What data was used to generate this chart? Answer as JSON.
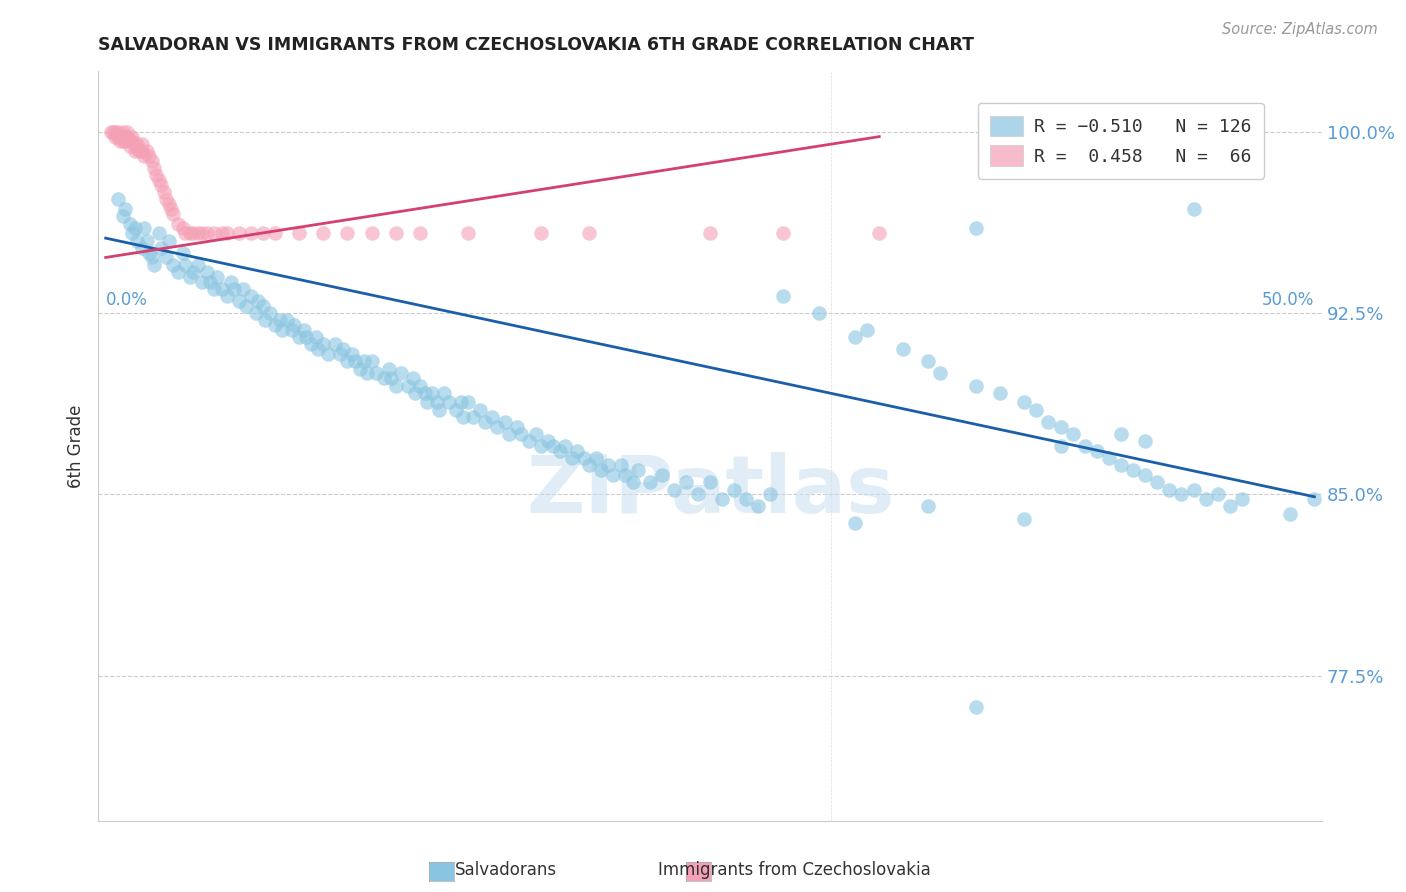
{
  "title": "SALVADORAN VS IMMIGRANTS FROM CZECHOSLOVAKIA 6TH GRADE CORRELATION CHART",
  "source": "Source: ZipAtlas.com",
  "ylabel": "6th Grade",
  "ytick_labels": [
    "100.0%",
    "92.5%",
    "85.0%",
    "77.5%"
  ],
  "ytick_values": [
    1.0,
    0.925,
    0.85,
    0.775
  ],
  "ymin": 0.715,
  "ymax": 1.025,
  "xmin": -0.003,
  "xmax": 0.503,
  "blue_color": "#89c4e1",
  "pink_color": "#f4a0b5",
  "line_blue": "#1a5fa8",
  "line_pink": "#d44070",
  "axis_color": "#5b9bd5",
  "blue_scatter": [
    [
      0.005,
      0.972
    ],
    [
      0.007,
      0.965
    ],
    [
      0.008,
      0.968
    ],
    [
      0.01,
      0.962
    ],
    [
      0.011,
      0.958
    ],
    [
      0.012,
      0.96
    ],
    [
      0.013,
      0.955
    ],
    [
      0.015,
      0.952
    ],
    [
      0.016,
      0.96
    ],
    [
      0.017,
      0.955
    ],
    [
      0.018,
      0.95
    ],
    [
      0.019,
      0.948
    ],
    [
      0.02,
      0.945
    ],
    [
      0.022,
      0.958
    ],
    [
      0.023,
      0.952
    ],
    [
      0.025,
      0.948
    ],
    [
      0.026,
      0.955
    ],
    [
      0.028,
      0.945
    ],
    [
      0.03,
      0.942
    ],
    [
      0.032,
      0.95
    ],
    [
      0.033,
      0.945
    ],
    [
      0.035,
      0.94
    ],
    [
      0.036,
      0.942
    ],
    [
      0.038,
      0.945
    ],
    [
      0.04,
      0.938
    ],
    [
      0.042,
      0.942
    ],
    [
      0.043,
      0.938
    ],
    [
      0.045,
      0.935
    ],
    [
      0.046,
      0.94
    ],
    [
      0.048,
      0.935
    ],
    [
      0.05,
      0.932
    ],
    [
      0.052,
      0.938
    ],
    [
      0.053,
      0.935
    ],
    [
      0.055,
      0.93
    ],
    [
      0.057,
      0.935
    ],
    [
      0.058,
      0.928
    ],
    [
      0.06,
      0.932
    ],
    [
      0.062,
      0.925
    ],
    [
      0.063,
      0.93
    ],
    [
      0.065,
      0.928
    ],
    [
      0.066,
      0.922
    ],
    [
      0.068,
      0.925
    ],
    [
      0.07,
      0.92
    ],
    [
      0.072,
      0.922
    ],
    [
      0.073,
      0.918
    ],
    [
      0.075,
      0.922
    ],
    [
      0.077,
      0.918
    ],
    [
      0.078,
      0.92
    ],
    [
      0.08,
      0.915
    ],
    [
      0.082,
      0.918
    ],
    [
      0.083,
      0.915
    ],
    [
      0.085,
      0.912
    ],
    [
      0.087,
      0.915
    ],
    [
      0.088,
      0.91
    ],
    [
      0.09,
      0.912
    ],
    [
      0.092,
      0.908
    ],
    [
      0.095,
      0.912
    ],
    [
      0.097,
      0.908
    ],
    [
      0.098,
      0.91
    ],
    [
      0.1,
      0.905
    ],
    [
      0.102,
      0.908
    ],
    [
      0.103,
      0.905
    ],
    [
      0.105,
      0.902
    ],
    [
      0.107,
      0.905
    ],
    [
      0.108,
      0.9
    ],
    [
      0.11,
      0.905
    ],
    [
      0.112,
      0.9
    ],
    [
      0.115,
      0.898
    ],
    [
      0.117,
      0.902
    ],
    [
      0.118,
      0.898
    ],
    [
      0.12,
      0.895
    ],
    [
      0.122,
      0.9
    ],
    [
      0.125,
      0.895
    ],
    [
      0.127,
      0.898
    ],
    [
      0.128,
      0.892
    ],
    [
      0.13,
      0.895
    ],
    [
      0.132,
      0.892
    ],
    [
      0.133,
      0.888
    ],
    [
      0.135,
      0.892
    ],
    [
      0.137,
      0.888
    ],
    [
      0.138,
      0.885
    ],
    [
      0.14,
      0.892
    ],
    [
      0.142,
      0.888
    ],
    [
      0.145,
      0.885
    ],
    [
      0.147,
      0.888
    ],
    [
      0.148,
      0.882
    ],
    [
      0.15,
      0.888
    ],
    [
      0.152,
      0.882
    ],
    [
      0.155,
      0.885
    ],
    [
      0.157,
      0.88
    ],
    [
      0.16,
      0.882
    ],
    [
      0.162,
      0.878
    ],
    [
      0.165,
      0.88
    ],
    [
      0.167,
      0.875
    ],
    [
      0.17,
      0.878
    ],
    [
      0.172,
      0.875
    ],
    [
      0.175,
      0.872
    ],
    [
      0.178,
      0.875
    ],
    [
      0.18,
      0.87
    ],
    [
      0.183,
      0.872
    ],
    [
      0.185,
      0.87
    ],
    [
      0.188,
      0.868
    ],
    [
      0.19,
      0.87
    ],
    [
      0.193,
      0.865
    ],
    [
      0.195,
      0.868
    ],
    [
      0.198,
      0.865
    ],
    [
      0.2,
      0.862
    ],
    [
      0.203,
      0.865
    ],
    [
      0.205,
      0.86
    ],
    [
      0.208,
      0.862
    ],
    [
      0.21,
      0.858
    ],
    [
      0.213,
      0.862
    ],
    [
      0.215,
      0.858
    ],
    [
      0.218,
      0.855
    ],
    [
      0.22,
      0.86
    ],
    [
      0.225,
      0.855
    ],
    [
      0.23,
      0.858
    ],
    [
      0.235,
      0.852
    ],
    [
      0.24,
      0.855
    ],
    [
      0.245,
      0.85
    ],
    [
      0.25,
      0.855
    ],
    [
      0.255,
      0.848
    ],
    [
      0.26,
      0.852
    ],
    [
      0.265,
      0.848
    ],
    [
      0.27,
      0.845
    ],
    [
      0.275,
      0.85
    ],
    [
      0.28,
      0.932
    ],
    [
      0.295,
      0.925
    ],
    [
      0.31,
      0.915
    ],
    [
      0.315,
      0.918
    ],
    [
      0.33,
      0.91
    ],
    [
      0.34,
      0.905
    ],
    [
      0.345,
      0.9
    ],
    [
      0.36,
      0.895
    ],
    [
      0.37,
      0.892
    ],
    [
      0.38,
      0.888
    ],
    [
      0.385,
      0.885
    ],
    [
      0.39,
      0.88
    ],
    [
      0.395,
      0.878
    ],
    [
      0.4,
      0.875
    ],
    [
      0.405,
      0.87
    ],
    [
      0.41,
      0.868
    ],
    [
      0.415,
      0.865
    ],
    [
      0.42,
      0.862
    ],
    [
      0.425,
      0.86
    ],
    [
      0.43,
      0.858
    ],
    [
      0.435,
      0.855
    ],
    [
      0.44,
      0.852
    ],
    [
      0.445,
      0.85
    ],
    [
      0.45,
      0.852
    ],
    [
      0.455,
      0.848
    ],
    [
      0.46,
      0.85
    ],
    [
      0.465,
      0.845
    ],
    [
      0.47,
      0.848
    ],
    [
      0.36,
      0.96
    ],
    [
      0.45,
      0.968
    ],
    [
      0.395,
      0.87
    ],
    [
      0.43,
      0.872
    ],
    [
      0.34,
      0.845
    ],
    [
      0.31,
      0.838
    ],
    [
      0.38,
      0.84
    ],
    [
      0.42,
      0.875
    ],
    [
      0.36,
      0.762
    ],
    [
      0.5,
      0.848
    ],
    [
      0.49,
      0.842
    ]
  ],
  "pink_scatter": [
    [
      0.002,
      1.0
    ],
    [
      0.003,
      1.0
    ],
    [
      0.004,
      1.0
    ],
    [
      0.004,
      0.998
    ],
    [
      0.005,
      1.0
    ],
    [
      0.005,
      0.998
    ],
    [
      0.006,
      0.998
    ],
    [
      0.006,
      0.996
    ],
    [
      0.007,
      1.0
    ],
    [
      0.007,
      0.998
    ],
    [
      0.007,
      0.996
    ],
    [
      0.008,
      0.998
    ],
    [
      0.008,
      0.996
    ],
    [
      0.009,
      1.0
    ],
    [
      0.009,
      0.998
    ],
    [
      0.01,
      0.996
    ],
    [
      0.01,
      0.994
    ],
    [
      0.011,
      0.998
    ],
    [
      0.011,
      0.996
    ],
    [
      0.012,
      0.995
    ],
    [
      0.012,
      0.992
    ],
    [
      0.013,
      0.995
    ],
    [
      0.013,
      0.993
    ],
    [
      0.014,
      0.992
    ],
    [
      0.015,
      0.995
    ],
    [
      0.015,
      0.992
    ],
    [
      0.016,
      0.99
    ],
    [
      0.017,
      0.992
    ],
    [
      0.018,
      0.99
    ],
    [
      0.019,
      0.988
    ],
    [
      0.02,
      0.985
    ],
    [
      0.021,
      0.982
    ],
    [
      0.022,
      0.98
    ],
    [
      0.023,
      0.978
    ],
    [
      0.024,
      0.975
    ],
    [
      0.025,
      0.972
    ],
    [
      0.026,
      0.97
    ],
    [
      0.027,
      0.968
    ],
    [
      0.028,
      0.966
    ],
    [
      0.03,
      0.962
    ],
    [
      0.032,
      0.96
    ],
    [
      0.033,
      0.958
    ],
    [
      0.035,
      0.958
    ],
    [
      0.036,
      0.958
    ],
    [
      0.038,
      0.958
    ],
    [
      0.04,
      0.958
    ],
    [
      0.042,
      0.958
    ],
    [
      0.045,
      0.958
    ],
    [
      0.048,
      0.958
    ],
    [
      0.05,
      0.958
    ],
    [
      0.055,
      0.958
    ],
    [
      0.06,
      0.958
    ],
    [
      0.065,
      0.958
    ],
    [
      0.07,
      0.958
    ],
    [
      0.08,
      0.958
    ],
    [
      0.09,
      0.958
    ],
    [
      0.1,
      0.958
    ],
    [
      0.11,
      0.958
    ],
    [
      0.12,
      0.958
    ],
    [
      0.13,
      0.958
    ],
    [
      0.15,
      0.958
    ],
    [
      0.18,
      0.958
    ],
    [
      0.2,
      0.958
    ],
    [
      0.25,
      0.958
    ],
    [
      0.28,
      0.958
    ],
    [
      0.32,
      0.958
    ]
  ],
  "blue_line_x": [
    0.0,
    0.5
  ],
  "blue_line_y": [
    0.956,
    0.849
  ],
  "pink_line_x": [
    0.0,
    0.32
  ],
  "pink_line_y": [
    0.948,
    0.998
  ],
  "watermark_text": "ZIPatlas",
  "watermark_color": "#c8dff0"
}
